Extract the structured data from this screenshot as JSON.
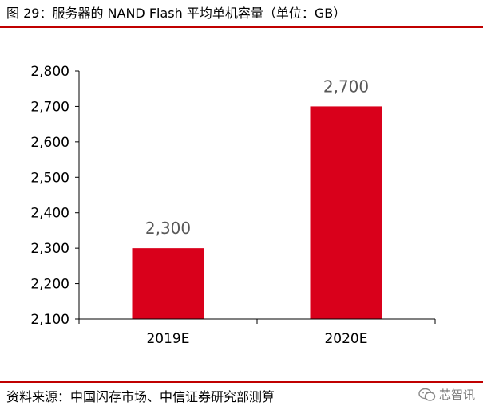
{
  "title": "图 29：服务器的 NAND Flash 平均单机容量（单位：GB）",
  "source": "资料来源：中国闪存市场、中信证券研究部测算",
  "watermark": "芯智讯",
  "colors": {
    "bar": "#d9001b",
    "accent_rule": "#c00000",
    "axis": "#000000",
    "data_label": "#595959"
  },
  "chart_data": {
    "type": "bar",
    "title": "图 29：服务器的 NAND Flash 平均单机容量（单位：GB）",
    "xlabel": "",
    "ylabel": "",
    "categories": [
      "2019E",
      "2020E"
    ],
    "values": [
      2300,
      2700
    ],
    "data_labels": [
      "2,300",
      "2,700"
    ],
    "ylim": [
      2100,
      2800
    ],
    "yticks": [
      2100,
      2200,
      2300,
      2400,
      2500,
      2600,
      2700,
      2800
    ],
    "ytick_labels": [
      "2,100",
      "2,200",
      "2,300",
      "2,400",
      "2,500",
      "2,600",
      "2,700",
      "2,800"
    ],
    "grid": false,
    "legend": "none"
  }
}
